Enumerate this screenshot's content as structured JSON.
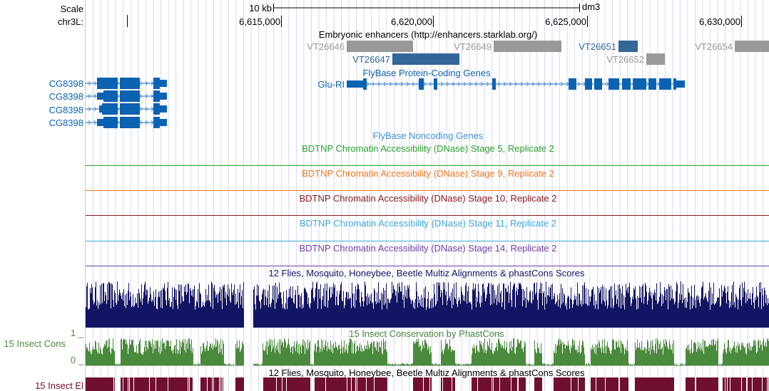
{
  "ruler": {
    "scale_label": "Scale",
    "scale_bar": "10 kb",
    "assembly": "dm3",
    "chrom_label": "chr3L:",
    "ticks": [
      "6,615,000",
      "6,620,000",
      "6,625,000",
      "6,630,000"
    ]
  },
  "enhancers": {
    "title": "Embryonic enhancers (http://enhancers.starklab.org/)",
    "items": [
      {
        "name": "VT26646",
        "color": "#999999"
      },
      {
        "name": "VT26649",
        "color": "#999999"
      },
      {
        "name": "VT26651",
        "color": "#336699"
      },
      {
        "name": "VT26654",
        "color": "#999999"
      },
      {
        "name": "VT26647",
        "color": "#336699"
      },
      {
        "name": "VT26652",
        "color": "#999999"
      }
    ]
  },
  "protein_coding": {
    "title": "FlyBase Protein-Coding Genes",
    "genes": [
      "CG8398",
      "CG8398",
      "CG8398",
      "CG8398",
      "Glu-RI"
    ],
    "color": "#0c62b2"
  },
  "noncoding": {
    "title": "FlyBase Noncoding Genes"
  },
  "dnase_tracks": [
    {
      "title": "BDTNP Chromatin Accessibility (DNase) Stage 5, Replicate 2",
      "color": "#2ca02c"
    },
    {
      "title": "BDTNP Chromatin Accessibility (DNase) Stage 9, Replicate 2",
      "color": "#f07820"
    },
    {
      "title": "BDTNP Chromatin Accessibility (DNase) Stage 10, Replicate 2",
      "color": "#8b1a1a"
    },
    {
      "title": "BDTNP Chromatin Accessibility (DNase) Stage 11, Replicate 2",
      "color": "#3fa9dc"
    },
    {
      "title": "BDTNP Chromatin Accessibility (DNase) Stage 14, Replicate 2",
      "color": "#7040a8"
    }
  ],
  "multiz": {
    "title": "12 Flies, Mosquito, Honeybee, Beetle Multiz Alignments & phastCons Scores",
    "color": "#141464"
  },
  "phastcons": {
    "title": "15 Insect Conservation by PhastCons",
    "label": "15 Insect Cons",
    "ymax": "1 _",
    "ymin": "0 _",
    "color": "#4a8a3c"
  },
  "multiz2": {
    "title": "12 Flies, Mosquito, Honeybee, Beetle Multiz Alignments & phastCons Scores"
  },
  "elements": {
    "label": "15 Insect El",
    "color": "#701030"
  }
}
